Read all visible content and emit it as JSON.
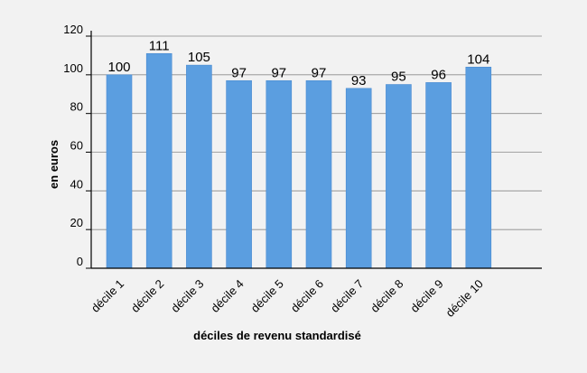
{
  "chart_data": {
    "type": "bar",
    "categories": [
      "décile 1",
      "décile 2",
      "décile 3",
      "décile 4",
      "décile 5",
      "décile 6",
      "décile 7",
      "décile 8",
      "décile 9",
      "décile 10"
    ],
    "values": [
      100,
      111,
      105,
      97,
      97,
      97,
      93,
      95,
      96,
      104
    ],
    "data_labels": [
      "100",
      "111",
      "105",
      "97",
      "97",
      "97",
      "93",
      "95",
      "96",
      "104"
    ],
    "xlabel": "déciles de revenu standardisé",
    "ylabel": "en euros",
    "ylim": [
      0,
      120
    ],
    "yticks": [
      "0",
      "20",
      "40",
      "60",
      "80",
      "100",
      "120"
    ],
    "grid": true,
    "colors": {
      "bar": "#5b9ee0",
      "bar_edge": "#4a8ad0",
      "grid": "#8a8a8a",
      "axis": "#000000"
    }
  }
}
